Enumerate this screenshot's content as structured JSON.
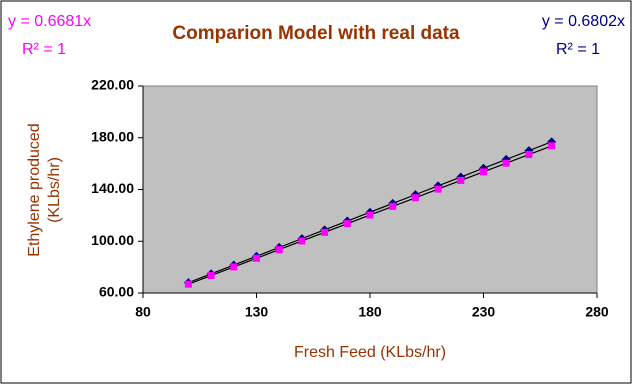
{
  "chart_data": {
    "type": "scatter",
    "title": "Comparion Model with real data",
    "x_label": "Fresh Feed (KLbs/hr)",
    "y_label": [
      "Ethylene produced",
      "(KLbs/hr)"
    ],
    "x": [
      100,
      110,
      120,
      130,
      140,
      150,
      160,
      170,
      180,
      190,
      200,
      210,
      220,
      230,
      240,
      250,
      260
    ],
    "series": [
      {
        "color": "#000080",
        "marker": "diamond",
        "values": [
          68.02,
          74.82,
          81.62,
          88.43,
          95.23,
          102.03,
          108.83,
          115.63,
          122.44,
          129.24,
          136.04,
          142.84,
          149.64,
          156.45,
          163.25,
          170.05,
          176.85
        ]
      },
      {
        "color": "#ff00ff",
        "marker": "square",
        "values": [
          66.81,
          73.49,
          80.17,
          86.85,
          93.53,
          100.22,
          106.9,
          113.58,
          120.26,
          126.94,
          133.62,
          140.3,
          146.99,
          153.67,
          160.35,
          167.03,
          173.71
        ]
      }
    ],
    "trendline_color": "#000000",
    "xlim": [
      80,
      280
    ],
    "xticks": [
      80,
      130,
      180,
      230,
      280
    ],
    "ylim": [
      60,
      220
    ],
    "yticks": [
      {
        "value": 60,
        "label": "60.00"
      },
      {
        "value": 100,
        "label": "100.00"
      },
      {
        "value": 140,
        "label": "140.00"
      },
      {
        "value": 180,
        "label": "180.00"
      },
      {
        "value": 220,
        "label": "220.00"
      }
    ],
    "grid": false,
    "annotations": [
      {
        "text": "y = 0.6681x",
        "color": "#ff00ff"
      },
      {
        "text": "R² = 1",
        "color": "#ff00ff"
      },
      {
        "text": "y = 0.6802x",
        "color": "#000080"
      },
      {
        "text": "R² = 1",
        "color": "#000080"
      }
    ]
  }
}
